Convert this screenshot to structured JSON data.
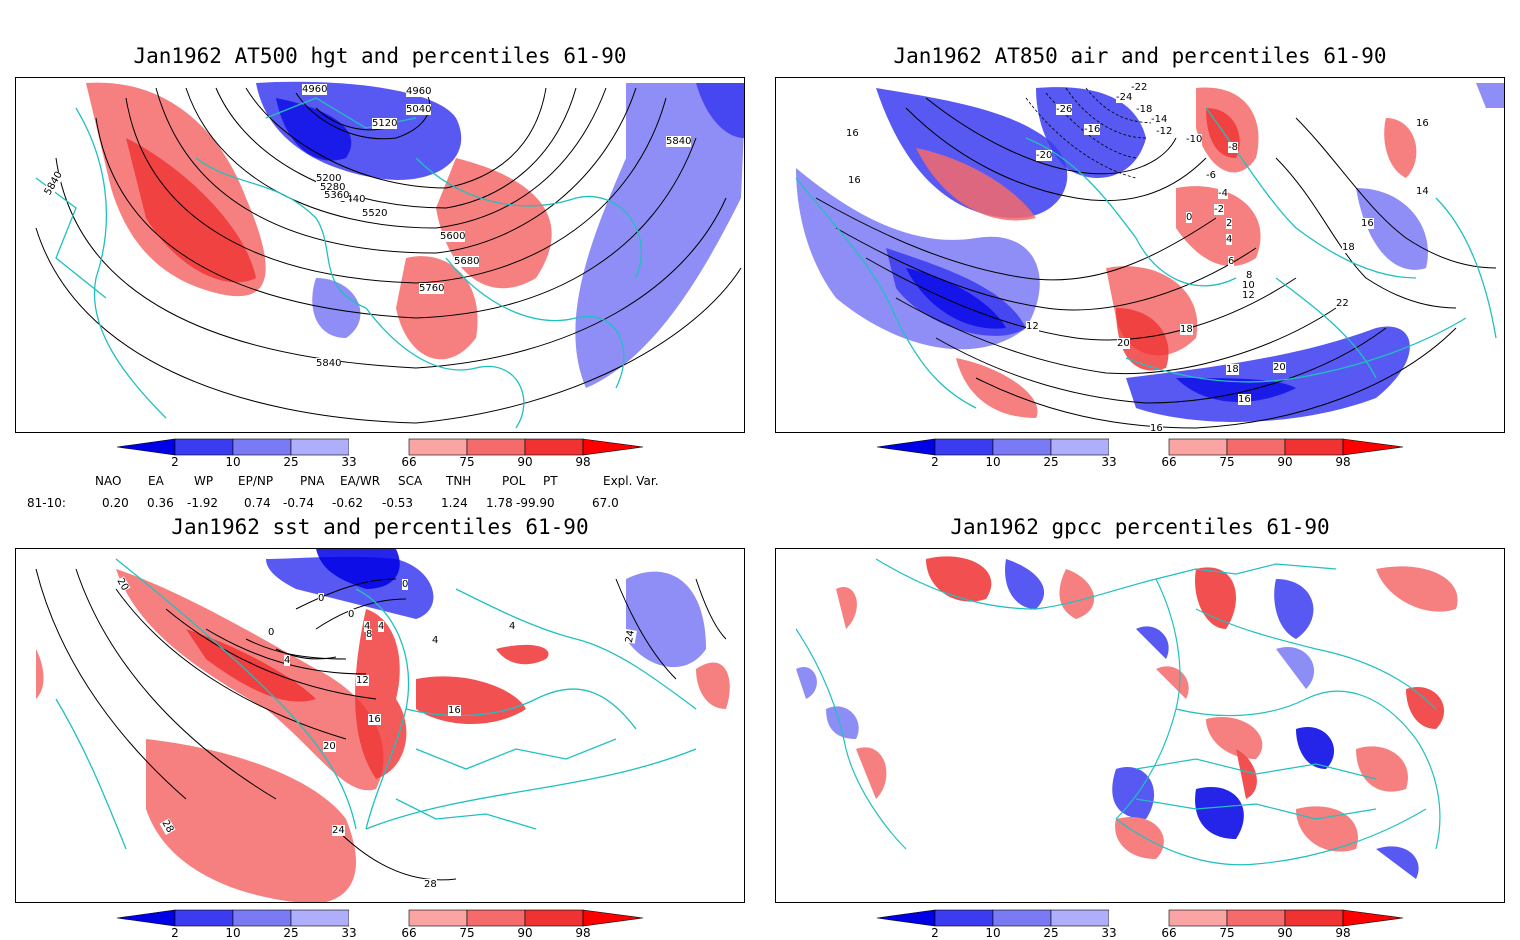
{
  "panels": [
    {
      "title": "Jan1962 AT500 hgt and percentiles 61-90",
      "contour_labels": [
        "4960",
        "4960",
        "5040",
        "5120",
        "5200",
        "5280",
        "5360",
        "5440",
        "5520",
        "5600",
        "5680",
        "5760",
        "5840",
        "5840",
        "5840"
      ]
    },
    {
      "title": "Jan1962 AT850 air and percentiles 61-90",
      "contour_labels": [
        "16",
        "16",
        "16",
        "14",
        "16",
        "18",
        "22",
        "20",
        "18",
        "16",
        "18",
        "20",
        "18",
        "16",
        "12",
        "12",
        "10",
        "8",
        "6",
        "4",
        "2",
        "0",
        "-2",
        "-4",
        "-6",
        "-8",
        "-10",
        "-12",
        "-14",
        "-16",
        "-18",
        "-20",
        "-22",
        "-24",
        "-26"
      ]
    },
    {
      "title": "Jan1962 sst and percentiles 61-90",
      "contour_labels": [
        "20",
        "0",
        "0",
        "0",
        "0",
        "4",
        "4",
        "8",
        "4",
        "12",
        "16",
        "20",
        "24",
        "28",
        "28",
        "24",
        "4",
        "4",
        "16"
      ]
    },
    {
      "title": "Jan1962 gpcc percentiles 61-90",
      "contour_labels": []
    }
  ],
  "colorbar": {
    "labels": [
      "2",
      "10",
      "25",
      "33",
      "66",
      "75",
      "90",
      "98"
    ],
    "colors": {
      "c1": "#0000e6",
      "c2": "#3b3bf0",
      "c3": "#7a7af5",
      "c4": "#aeaefa",
      "w": "#ffffff",
      "c5": "#fba4a4",
      "c6": "#f56a6a",
      "c7": "#f03232",
      "c8": "#ff0000"
    }
  },
  "teleconnections": {
    "headers": [
      "NAO",
      "EA",
      "WP",
      "EP/NP",
      "PNA",
      "EA/WR",
      "SCA",
      "TNH",
      "POL",
      "PT",
      "Expl. Var."
    ],
    "row_label": "81-10:",
    "values": [
      "0.20",
      "0.36",
      "-1.92",
      "0.74",
      "-0.74",
      "-0.62",
      "-0.53",
      "1.24",
      "1.78",
      "-99.90",
      "67.0"
    ]
  },
  "colors": {
    "coast": "#20c0c0",
    "contour": "#000000",
    "frame": "#000000"
  }
}
